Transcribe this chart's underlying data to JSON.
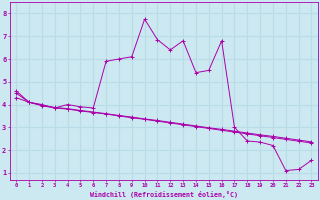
{
  "xlabel": "Windchill (Refroidissement éolien,°C)",
  "bg_color": "#cce8f0",
  "line_color": "#aa00aa",
  "grid_color": "#b8dde8",
  "xlim": [
    -0.5,
    23.5
  ],
  "ylim": [
    0.7,
    8.5
  ],
  "yticks": [
    1,
    2,
    3,
    4,
    5,
    6,
    7,
    8
  ],
  "xticks": [
    0,
    1,
    2,
    3,
    4,
    5,
    6,
    7,
    8,
    9,
    10,
    11,
    12,
    13,
    14,
    15,
    16,
    17,
    18,
    19,
    20,
    21,
    22,
    23
  ],
  "series1_x": [
    0,
    1,
    2,
    3,
    4,
    5,
    6,
    7,
    8,
    9,
    10,
    11,
    12,
    13,
    14,
    15,
    16,
    17,
    18,
    19,
    20,
    21,
    22,
    23
  ],
  "series1_y": [
    4.6,
    4.1,
    4.0,
    3.85,
    4.0,
    3.9,
    3.85,
    5.9,
    6.0,
    6.1,
    7.75,
    6.85,
    6.4,
    6.8,
    5.4,
    5.5,
    6.8,
    3.0,
    2.4,
    2.35,
    2.2,
    1.1,
    1.15,
    1.55
  ],
  "series2_x": [
    0,
    1,
    2,
    3,
    4,
    5,
    6,
    7,
    8,
    9,
    10,
    11,
    12,
    13,
    14,
    15,
    16,
    17,
    18,
    19,
    20,
    21,
    22,
    23
  ],
  "series2_y": [
    4.3,
    4.1,
    3.95,
    3.85,
    3.8,
    3.72,
    3.65,
    3.58,
    3.5,
    3.42,
    3.35,
    3.27,
    3.19,
    3.11,
    3.03,
    2.95,
    2.87,
    2.79,
    2.71,
    2.63,
    2.55,
    2.47,
    2.39,
    2.31
  ],
  "series3_x": [
    0,
    1,
    2,
    3,
    4,
    5,
    6,
    7,
    8,
    9,
    10,
    11,
    12,
    13,
    14,
    15,
    16,
    17,
    18,
    19,
    20,
    21,
    22,
    23
  ],
  "series3_y": [
    4.5,
    4.1,
    3.97,
    3.87,
    3.82,
    3.74,
    3.67,
    3.6,
    3.52,
    3.45,
    3.37,
    3.3,
    3.22,
    3.14,
    3.06,
    2.98,
    2.91,
    2.83,
    2.75,
    2.67,
    2.6,
    2.52,
    2.44,
    2.36
  ]
}
